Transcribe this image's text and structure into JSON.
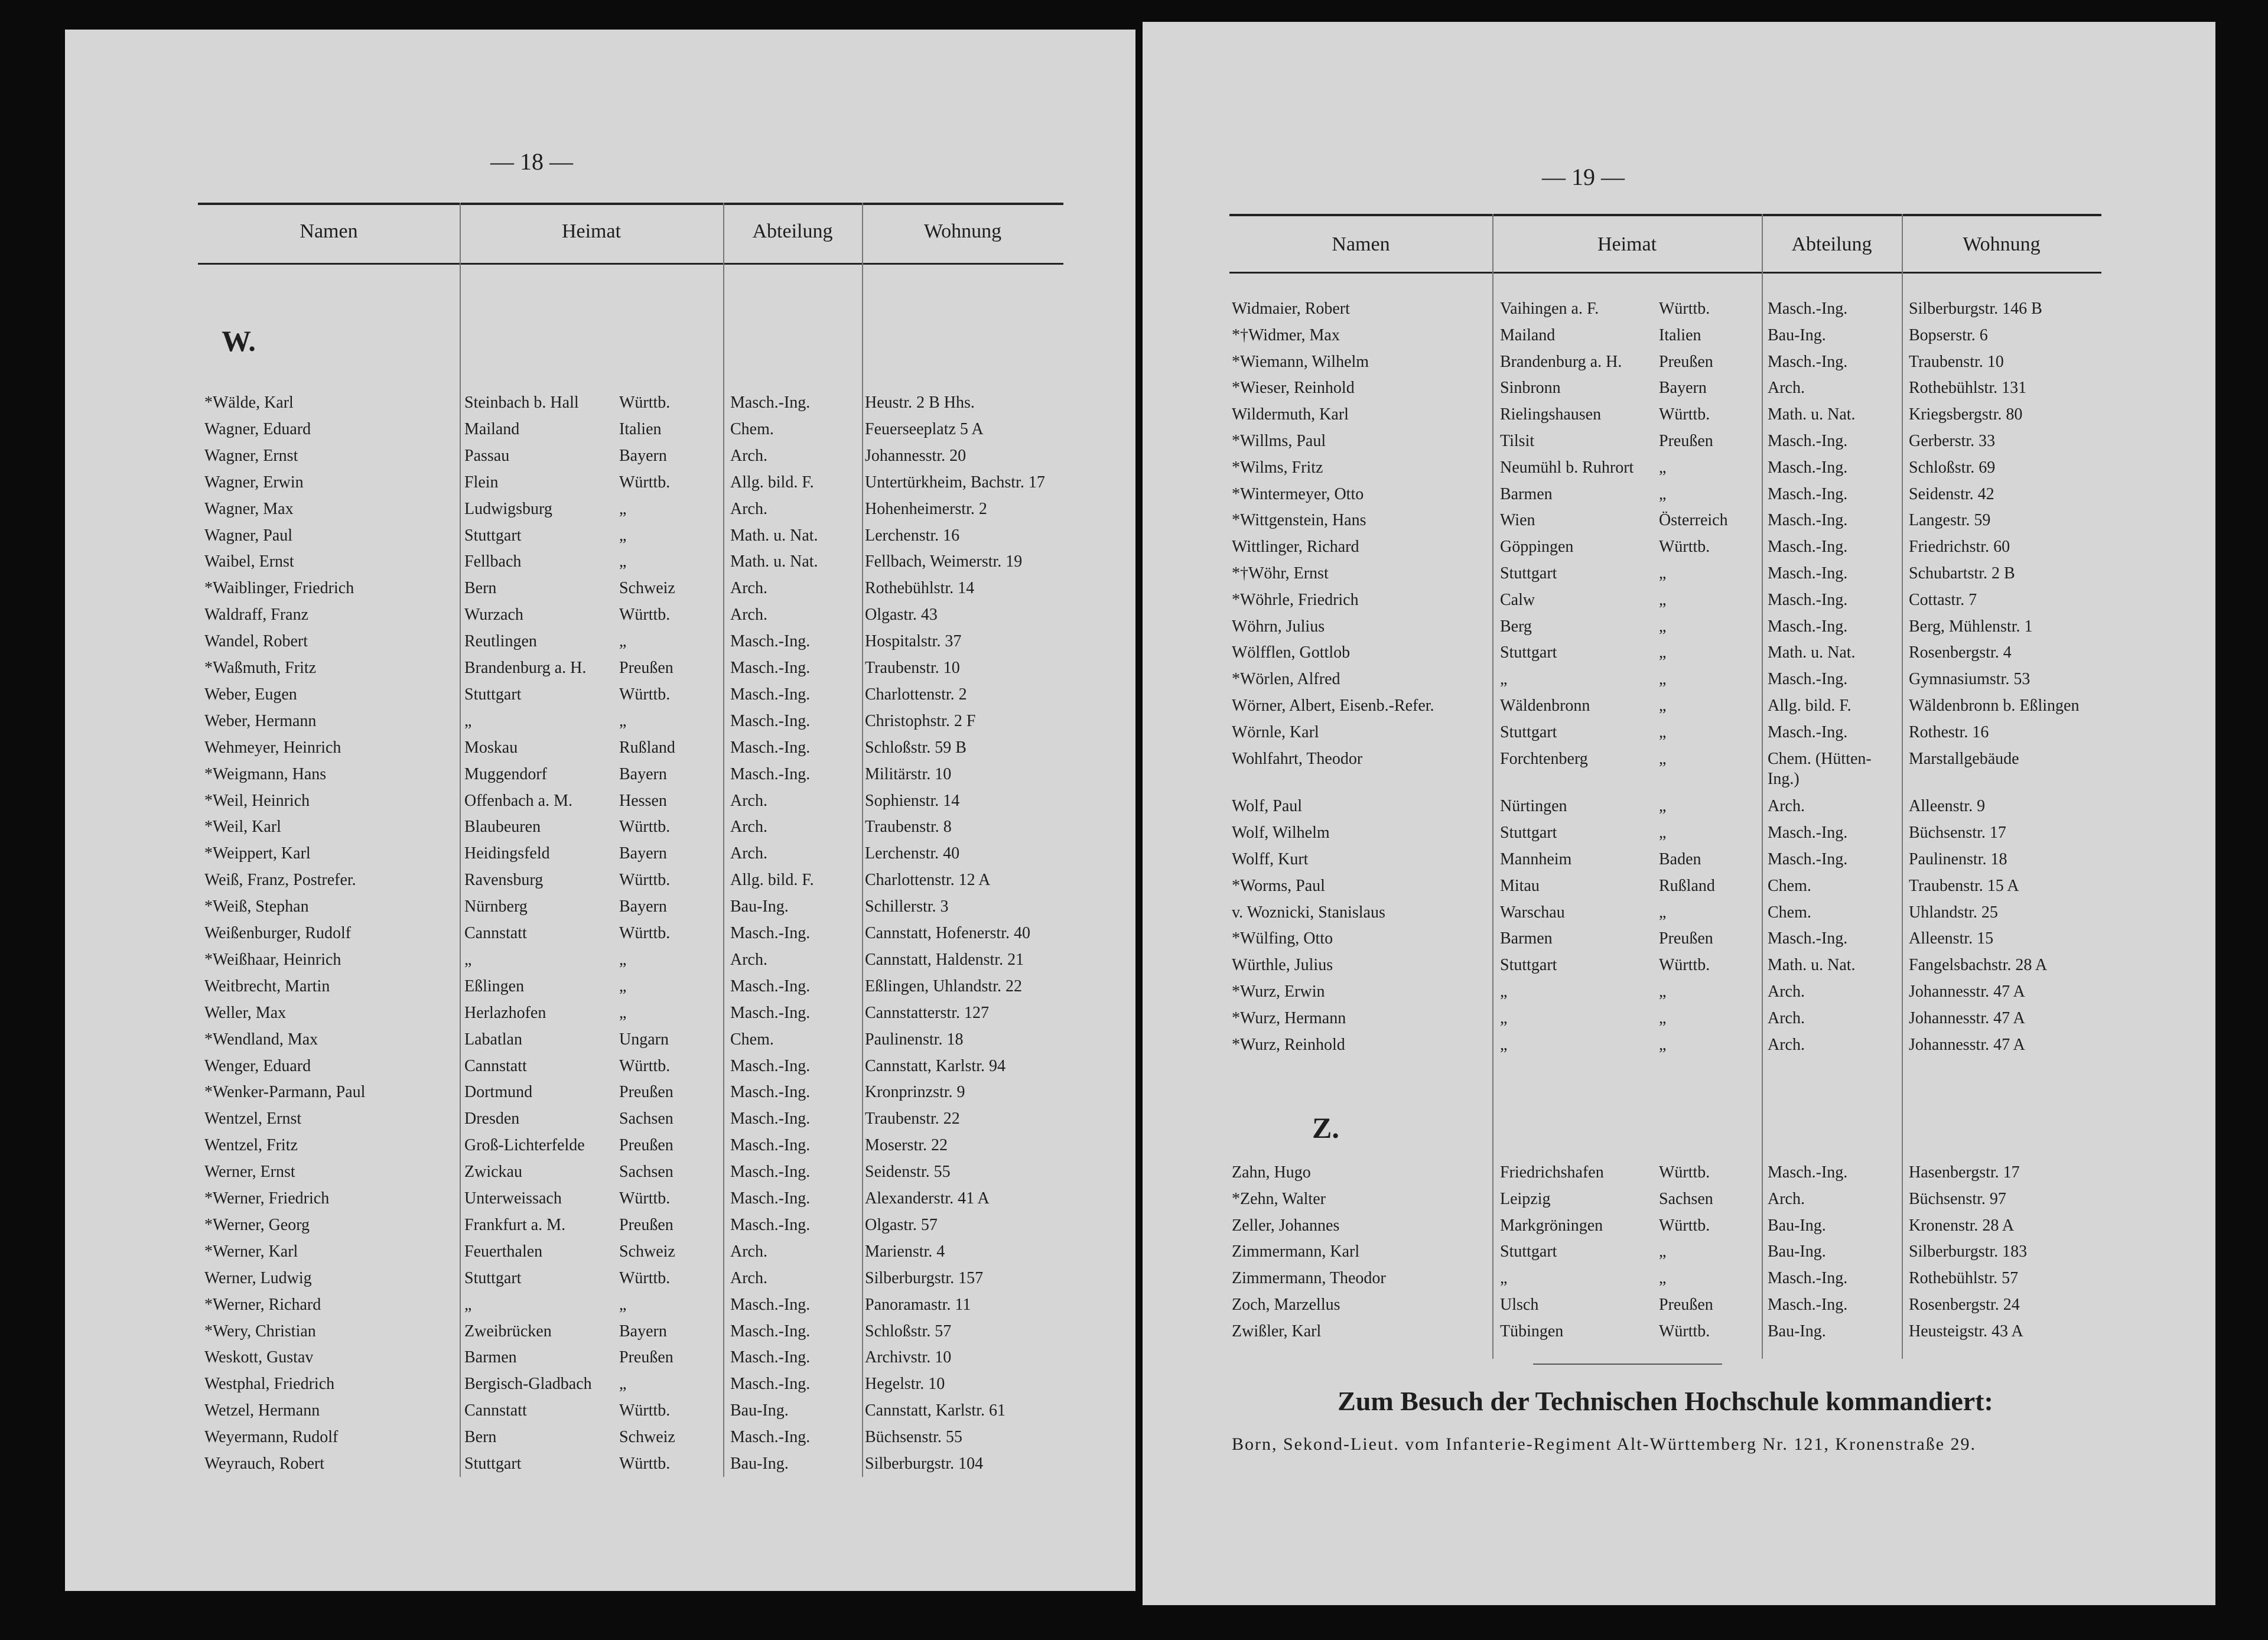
{
  "pages": [
    {
      "page_number": "— 18 —",
      "header": [
        "Namen",
        "Heimat",
        "Abteilung",
        "Wohnung"
      ],
      "sections": [
        {
          "letter": "W.",
          "rows": [
            [
              "*Wälde, Karl",
              "Steinbach b. Hall",
              "Württb.",
              "Masch.-Ing.",
              "Heustr. 2 B Hhs."
            ],
            [
              "Wagner, Eduard",
              "Mailand",
              "Italien",
              "Chem.",
              "Feuerseeplatz 5 A"
            ],
            [
              "Wagner, Ernst",
              "Passau",
              "Bayern",
              "Arch.",
              "Johannesstr. 20"
            ],
            [
              "Wagner, Erwin",
              "Flein",
              "Württb.",
              "Allg. bild. F.",
              "Untertürkheim, Bachstr. 17"
            ],
            [
              "Wagner, Max",
              "Ludwigsburg",
              "„",
              "Arch.",
              "Hohenheimerstr. 2"
            ],
            [
              "Wagner, Paul",
              "Stuttgart",
              "„",
              "Math. u. Nat.",
              "Lerchenstr. 16"
            ],
            [
              "Waibel, Ernst",
              "Fellbach",
              "„",
              "Math. u. Nat.",
              "Fellbach, Weimerstr. 19"
            ],
            [
              "*Waiblinger, Friedrich",
              "Bern",
              "Schweiz",
              "Arch.",
              "Rothebühlstr. 14"
            ],
            [
              "Waldraff, Franz",
              "Wurzach",
              "Württb.",
              "Arch.",
              "Olgastr. 43"
            ],
            [
              "Wandel, Robert",
              "Reutlingen",
              "„",
              "Masch.-Ing.",
              "Hospitalstr. 37"
            ],
            [
              "*Waßmuth, Fritz",
              "Brandenburg a. H.",
              "Preußen",
              "Masch.-Ing.",
              "Traubenstr. 10"
            ],
            [
              "Weber, Eugen",
              "Stuttgart",
              "Württb.",
              "Masch.-Ing.",
              "Charlottenstr. 2"
            ],
            [
              "Weber, Hermann",
              "„",
              "„",
              "Masch.-Ing.",
              "Christophstr. 2 F"
            ],
            [
              "Wehmeyer, Heinrich",
              "Moskau",
              "Rußland",
              "Masch.-Ing.",
              "Schloßstr. 59 B"
            ],
            [
              "*Weigmann, Hans",
              "Muggendorf",
              "Bayern",
              "Masch.-Ing.",
              "Militärstr. 10"
            ],
            [
              "*Weil, Heinrich",
              "Offenbach a. M.",
              "Hessen",
              "Arch.",
              "Sophienstr. 14"
            ],
            [
              "*Weil, Karl",
              "Blaubeuren",
              "Württb.",
              "Arch.",
              "Traubenstr. 8"
            ],
            [
              "*Weippert, Karl",
              "Heidingsfeld",
              "Bayern",
              "Arch.",
              "Lerchenstr. 40"
            ],
            [
              "Weiß, Franz, Postrefer.",
              "Ravensburg",
              "Württb.",
              "Allg. bild. F.",
              "Charlottenstr. 12 A"
            ],
            [
              "*Weiß, Stephan",
              "Nürnberg",
              "Bayern",
              "Bau-Ing.",
              "Schillerstr. 3"
            ],
            [
              "Weißenburger, Rudolf",
              "Cannstatt",
              "Württb.",
              "Masch.-Ing.",
              "Cannstatt, Hofenerstr. 40"
            ],
            [
              "*Weißhaar, Heinrich",
              "„",
              "„",
              "Arch.",
              "Cannstatt, Haldenstr. 21"
            ],
            [
              "Weitbrecht, Martin",
              "Eßlingen",
              "„",
              "Masch.-Ing.",
              "Eßlingen, Uhlandstr. 22"
            ],
            [
              "Weller, Max",
              "Herlazhofen",
              "„",
              "Masch.-Ing.",
              "Cannstatterstr. 127"
            ],
            [
              "*Wendland, Max",
              "Labatlan",
              "Ungarn",
              "Chem.",
              "Paulinenstr. 18"
            ],
            [
              "Wenger, Eduard",
              "Cannstatt",
              "Württb.",
              "Masch.-Ing.",
              "Cannstatt, Karlstr. 94"
            ],
            [
              "*Wenker-Parmann, Paul",
              "Dortmund",
              "Preußen",
              "Masch.-Ing.",
              "Kronprinzstr. 9"
            ],
            [
              "Wentzel, Ernst",
              "Dresden",
              "Sachsen",
              "Masch.-Ing.",
              "Traubenstr. 22"
            ],
            [
              "Wentzel, Fritz",
              "Groß-Lichterfelde",
              "Preußen",
              "Masch.-Ing.",
              "Moserstr. 22"
            ],
            [
              "Werner, Ernst",
              "Zwickau",
              "Sachsen",
              "Masch.-Ing.",
              "Seidenstr. 55"
            ],
            [
              "*Werner, Friedrich",
              "Unterweissach",
              "Württb.",
              "Masch.-Ing.",
              "Alexanderstr. 41 A"
            ],
            [
              "*Werner, Georg",
              "Frankfurt a. M.",
              "Preußen",
              "Masch.-Ing.",
              "Olgastr. 57"
            ],
            [
              "*Werner, Karl",
              "Feuerthalen",
              "Schweiz",
              "Arch.",
              "Marienstr. 4"
            ],
            [
              "Werner, Ludwig",
              "Stuttgart",
              "Württb.",
              "Arch.",
              "Silberburgstr. 157"
            ],
            [
              "*Werner, Richard",
              "„",
              "„",
              "Masch.-Ing.",
              "Panoramastr. 11"
            ],
            [
              "*Wery, Christian",
              "Zweibrücken",
              "Bayern",
              "Masch.-Ing.",
              "Schloßstr. 57"
            ],
            [
              "Weskott, Gustav",
              "Barmen",
              "Preußen",
              "Masch.-Ing.",
              "Archivstr. 10"
            ],
            [
              "Westphal, Friedrich",
              "Bergisch-Gladbach",
              "„",
              "Masch.-Ing.",
              "Hegelstr. 10"
            ],
            [
              "Wetzel, Hermann",
              "Cannstatt",
              "Württb.",
              "Bau-Ing.",
              "Cannstatt, Karlstr. 61"
            ],
            [
              "Weyermann, Rudolf",
              "Bern",
              "Schweiz",
              "Masch.-Ing.",
              "Büchsenstr. 55"
            ],
            [
              "Weyrauch, Robert",
              "Stuttgart",
              "Württb.",
              "Bau-Ing.",
              "Silberburgstr. 104"
            ]
          ]
        }
      ]
    },
    {
      "page_number": "— 19 —",
      "header": [
        "Namen",
        "Heimat",
        "Abteilung",
        "Wohnung"
      ],
      "sections": [
        {
          "rows": [
            [
              "Widmaier, Robert",
              "Vaihingen a. F.",
              "Württb.",
              "Masch.-Ing.",
              "Silberburgstr. 146 B"
            ],
            [
              "*†Widmer, Max",
              "Mailand",
              "Italien",
              "Bau-Ing.",
              "Bopserstr. 6"
            ],
            [
              "*Wiemann, Wilhelm",
              "Brandenburg a. H.",
              "Preußen",
              "Masch.-Ing.",
              "Traubenstr. 10"
            ],
            [
              "*Wieser, Reinhold",
              "Sinbronn",
              "Bayern",
              "Arch.",
              "Rothebühlstr. 131"
            ],
            [
              "Wildermuth, Karl",
              "Rielingshausen",
              "Württb.",
              "Math. u. Nat.",
              "Kriegsbergstr. 80"
            ],
            [
              "*Willms, Paul",
              "Tilsit",
              "Preußen",
              "Masch.-Ing.",
              "Gerberstr. 33"
            ],
            [
              "*Wilms, Fritz",
              "Neumühl b. Ruhrort",
              "„",
              "Masch.-Ing.",
              "Schloßstr. 69"
            ],
            [
              "*Wintermeyer, Otto",
              "Barmen",
              "„",
              "Masch.-Ing.",
              "Seidenstr. 42"
            ],
            [
              "*Wittgenstein, Hans",
              "Wien",
              "Österreich",
              "Masch.-Ing.",
              "Langestr. 59"
            ],
            [
              "Wittlinger, Richard",
              "Göppingen",
              "Württb.",
              "Masch.-Ing.",
              "Friedrichstr. 60"
            ],
            [
              "*†Wöhr, Ernst",
              "Stuttgart",
              "„",
              "Masch.-Ing.",
              "Schubartstr. 2 B"
            ],
            [
              "*Wöhrle, Friedrich",
              "Calw",
              "„",
              "Masch.-Ing.",
              "Cottastr. 7"
            ],
            [
              "Wöhrn, Julius",
              "Berg",
              "„",
              "Masch.-Ing.",
              "Berg, Mühlenstr. 1"
            ],
            [
              "Wölfflen, Gottlob",
              "Stuttgart",
              "„",
              "Math. u. Nat.",
              "Rosenbergstr. 4"
            ],
            [
              "*Wörlen, Alfred",
              "„",
              "„",
              "Masch.-Ing.",
              "Gymnasiumstr. 53"
            ],
            [
              "Wörner, Albert, Eisenb.-Refer.",
              "Wäldenbronn",
              "„",
              "Allg. bild. F.",
              "Wäldenbronn b. Eßlingen"
            ],
            [
              "Wörnle, Karl",
              "Stuttgart",
              "„",
              "Masch.-Ing.",
              "Rothestr. 16"
            ],
            [
              "Wohlfahrt, Theodor",
              "Forchtenberg",
              "„",
              "Chem. (Hütten-Ing.)",
              "Marstallgebäude"
            ],
            [
              "Wolf, Paul",
              "Nürtingen",
              "„",
              "Arch.",
              "Alleenstr. 9"
            ],
            [
              "Wolf, Wilhelm",
              "Stuttgart",
              "„",
              "Masch.-Ing.",
              "Büchsenstr. 17"
            ],
            [
              "Wolff, Kurt",
              "Mannheim",
              "Baden",
              "Masch.-Ing.",
              "Paulinenstr. 18"
            ],
            [
              "*Worms, Paul",
              "Mitau",
              "Rußland",
              "Chem.",
              "Traubenstr. 15 A"
            ],
            [
              "v. Woznicki, Stanislaus",
              "Warschau",
              "„",
              "Chem.",
              "Uhlandstr. 25"
            ],
            [
              "*Wülfing, Otto",
              "Barmen",
              "Preußen",
              "Masch.-Ing.",
              "Alleenstr. 15"
            ],
            [
              "Würthle, Julius",
              "Stuttgart",
              "Württb.",
              "Math. u. Nat.",
              "Fangelsbachstr. 28 A"
            ],
            [
              "*Wurz, Erwin",
              "„",
              "„",
              "Arch.",
              "Johannesstr. 47 A"
            ],
            [
              "*Wurz, Hermann",
              "„",
              "„",
              "Arch.",
              "Johannesstr. 47 A"
            ],
            [
              "*Wurz, Reinhold",
              "„",
              "„",
              "Arch.",
              "Johannesstr. 47 A"
            ]
          ]
        },
        {
          "letter": "Z.",
          "rows": [
            [
              "Zahn, Hugo",
              "Friedrichshafen",
              "Württb.",
              "Masch.-Ing.",
              "Hasenbergstr. 17"
            ],
            [
              "*Zehn, Walter",
              "Leipzig",
              "Sachsen",
              "Arch.",
              "Büchsenstr. 97"
            ],
            [
              "Zeller, Johannes",
              "Markgröningen",
              "Württb.",
              "Bau-Ing.",
              "Kronenstr. 28 A"
            ],
            [
              "Zimmermann, Karl",
              "Stuttgart",
              "„",
              "Bau-Ing.",
              "Silberburgstr. 183"
            ],
            [
              "Zimmermann, Theodor",
              "„",
              "„",
              "Masch.-Ing.",
              "Rothebühlstr. 57"
            ],
            [
              "Zoch, Marzellus",
              "Ulsch",
              "Preußen",
              "Masch.-Ing.",
              "Rosenbergstr. 24"
            ],
            [
              "Zwißler, Karl",
              "Tübingen",
              "Württb.",
              "Bau-Ing.",
              "Heusteigstr. 43 A"
            ]
          ]
        }
      ],
      "note": {
        "title": "Zum Besuch der Technischen Hochschule kommandiert:",
        "text": "Born, Sekond-Lieut. vom Infanterie-Regiment Alt-Württemberg Nr. 121, Kronenstraße 29."
      }
    }
  ]
}
